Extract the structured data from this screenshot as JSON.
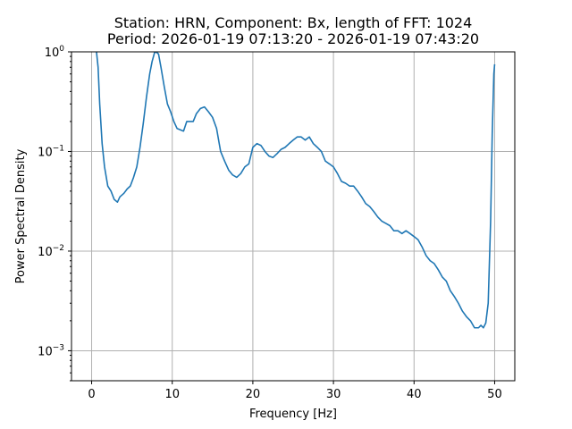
{
  "chart_data": {
    "type": "line",
    "title_line1": "Station: HRN, Component: Bx, length of FFT: 1024",
    "title_line2": "Period: 2026-01-19 07:13:20 - 2026-01-19 07:43:20",
    "xlabel": "Frequency [Hz]",
    "ylabel": "Power Spectral Density",
    "xlim": [
      -2.5,
      52.5
    ],
    "ylim": [
      0.0005,
      1.0
    ],
    "yscale": "log",
    "grid": true,
    "x_ticks": [
      0,
      10,
      20,
      30,
      40,
      50
    ],
    "x_tick_labels": [
      "0",
      "10",
      "20",
      "30",
      "40",
      "50"
    ],
    "y_ticks": [
      0.001,
      0.01,
      0.1,
      1
    ],
    "y_tick_labels": [
      {
        "base": "10",
        "exp": "−3"
      },
      {
        "base": "10",
        "exp": "−2"
      },
      {
        "base": "10",
        "exp": "−1"
      },
      {
        "base": "10",
        "exp": "0"
      }
    ],
    "series": [
      {
        "color": "#1f77b4",
        "x": [
          0.6,
          0.8,
          1.0,
          1.3,
          1.6,
          2.0,
          2.4,
          2.8,
          3.2,
          3.5,
          4.0,
          4.4,
          4.8,
          5.2,
          5.6,
          6.0,
          6.4,
          6.8,
          7.2,
          7.5,
          7.8,
          8.0,
          8.3,
          8.6,
          9.0,
          9.4,
          9.8,
          10.2,
          10.6,
          11.0,
          11.4,
          11.8,
          12.2,
          12.6,
          13.0,
          13.5,
          14.0,
          14.5,
          15.0,
          15.5,
          16.0,
          16.5,
          17.0,
          17.5,
          18.0,
          18.5,
          19.0,
          19.5,
          20.0,
          20.5,
          21.0,
          21.5,
          22.0,
          22.5,
          23.0,
          23.5,
          24.0,
          24.5,
          25.0,
          25.5,
          26.0,
          26.5,
          27.0,
          27.5,
          28.0,
          28.5,
          29.0,
          29.5,
          30.0,
          30.5,
          31.0,
          31.5,
          32.0,
          32.5,
          33.0,
          33.5,
          34.0,
          34.5,
          35.0,
          35.5,
          36.0,
          36.5,
          37.0,
          37.5,
          38.0,
          38.5,
          39.0,
          39.5,
          40.0,
          40.5,
          41.0,
          41.5,
          42.0,
          42.5,
          43.0,
          43.5,
          44.0,
          44.5,
          45.0,
          45.5,
          46.0,
          46.5,
          47.0,
          47.5,
          48.0,
          48.3,
          48.6,
          48.9,
          49.2,
          49.5,
          49.7,
          49.9,
          50.0
        ],
        "values": [
          1.0,
          0.7,
          0.3,
          0.12,
          0.07,
          0.045,
          0.04,
          0.033,
          0.031,
          0.035,
          0.038,
          0.042,
          0.045,
          0.055,
          0.07,
          0.11,
          0.19,
          0.35,
          0.6,
          0.8,
          0.98,
          1.0,
          0.95,
          0.7,
          0.45,
          0.3,
          0.25,
          0.2,
          0.17,
          0.165,
          0.16,
          0.2,
          0.2,
          0.2,
          0.24,
          0.27,
          0.28,
          0.25,
          0.22,
          0.17,
          0.1,
          0.08,
          0.065,
          0.058,
          0.055,
          0.06,
          0.07,
          0.075,
          0.11,
          0.12,
          0.115,
          0.1,
          0.09,
          0.087,
          0.095,
          0.105,
          0.11,
          0.12,
          0.13,
          0.14,
          0.14,
          0.13,
          0.14,
          0.12,
          0.11,
          0.1,
          0.08,
          0.075,
          0.07,
          0.06,
          0.05,
          0.048,
          0.045,
          0.045,
          0.04,
          0.035,
          0.03,
          0.028,
          0.025,
          0.022,
          0.02,
          0.019,
          0.018,
          0.016,
          0.016,
          0.015,
          0.016,
          0.015,
          0.014,
          0.013,
          0.011,
          0.009,
          0.008,
          0.0075,
          0.0065,
          0.0055,
          0.005,
          0.004,
          0.0035,
          0.003,
          0.0025,
          0.0022,
          0.002,
          0.0017,
          0.0017,
          0.0018,
          0.0017,
          0.0019,
          0.003,
          0.02,
          0.15,
          0.6,
          0.75
        ]
      }
    ]
  }
}
